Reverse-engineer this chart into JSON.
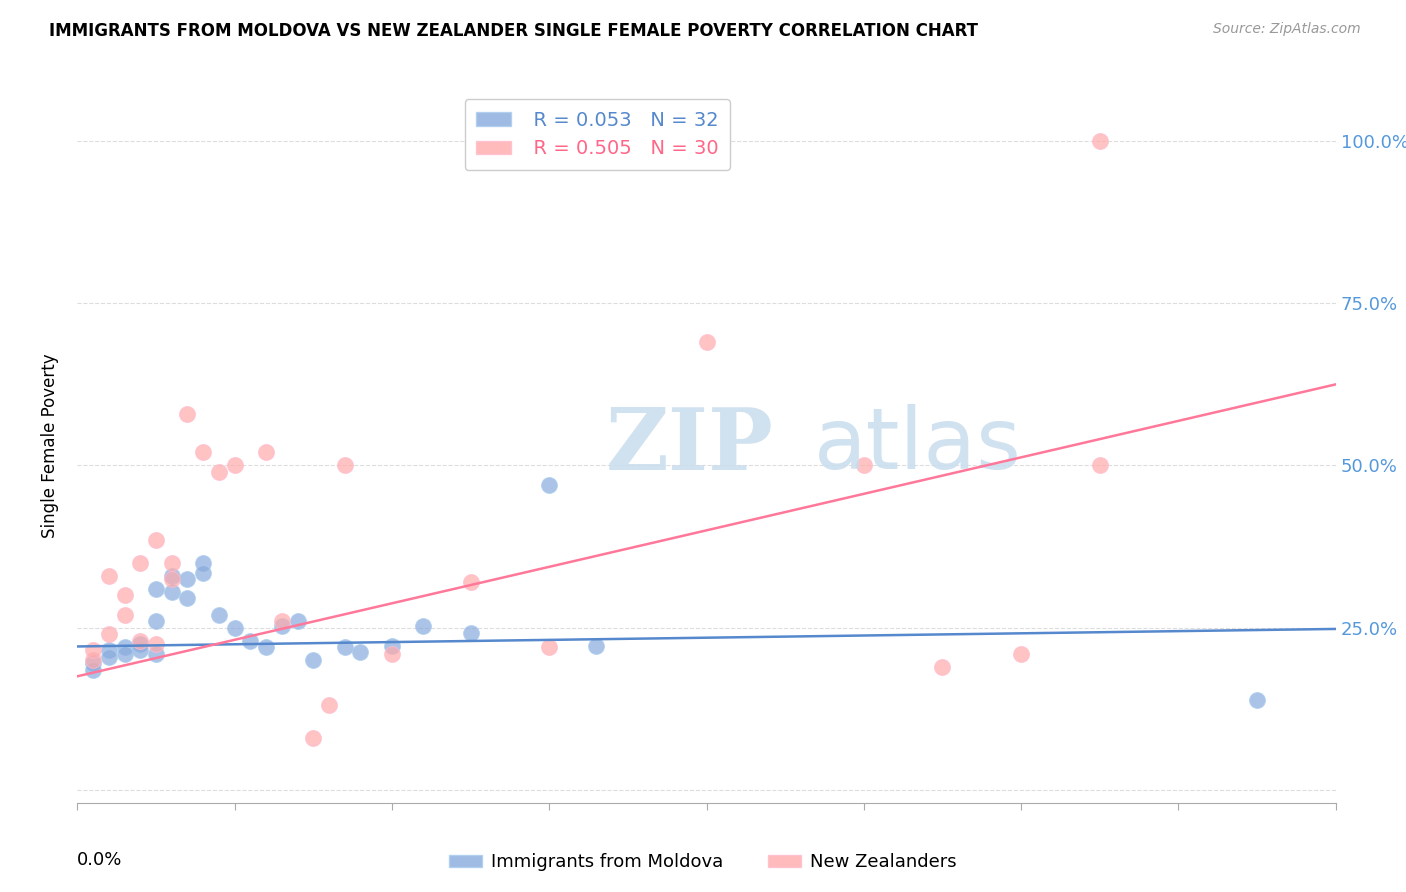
{
  "title": "IMMIGRANTS FROM MOLDOVA VS NEW ZEALANDER SINGLE FEMALE POVERTY CORRELATION CHART",
  "source": "Source: ZipAtlas.com",
  "ylabel": "Single Female Poverty",
  "yticks": [
    0.0,
    0.25,
    0.5,
    0.75,
    1.0
  ],
  "ytick_labels": [
    "",
    "25.0%",
    "50.0%",
    "75.0%",
    "100.0%"
  ],
  "xlim": [
    0.0,
    0.08
  ],
  "ylim": [
    -0.02,
    1.08
  ],
  "legend1_r": "R = 0.053",
  "legend1_n": "N = 32",
  "legend2_r": "R = 0.505",
  "legend2_n": "N = 30",
  "blue_color": "#88AADD",
  "pink_color": "#FFAAAA",
  "blue_line_color": "#5588CC",
  "pink_line_color": "#FF7799",
  "blue_scatter": [
    [
      0.001,
      0.195
    ],
    [
      0.001,
      0.185
    ],
    [
      0.002,
      0.215
    ],
    [
      0.002,
      0.205
    ],
    [
      0.003,
      0.22
    ],
    [
      0.003,
      0.21
    ],
    [
      0.004,
      0.225
    ],
    [
      0.004,
      0.215
    ],
    [
      0.005,
      0.21
    ],
    [
      0.005,
      0.26
    ],
    [
      0.005,
      0.31
    ],
    [
      0.006,
      0.305
    ],
    [
      0.006,
      0.33
    ],
    [
      0.007,
      0.325
    ],
    [
      0.007,
      0.295
    ],
    [
      0.008,
      0.35
    ],
    [
      0.008,
      0.335
    ],
    [
      0.009,
      0.27
    ],
    [
      0.01,
      0.25
    ],
    [
      0.011,
      0.23
    ],
    [
      0.012,
      0.22
    ],
    [
      0.013,
      0.252
    ],
    [
      0.014,
      0.26
    ],
    [
      0.015,
      0.2
    ],
    [
      0.017,
      0.22
    ],
    [
      0.018,
      0.212
    ],
    [
      0.02,
      0.222
    ],
    [
      0.022,
      0.252
    ],
    [
      0.025,
      0.242
    ],
    [
      0.03,
      0.47
    ],
    [
      0.033,
      0.222
    ],
    [
      0.075,
      0.138
    ]
  ],
  "pink_scatter": [
    [
      0.001,
      0.2
    ],
    [
      0.001,
      0.215
    ],
    [
      0.002,
      0.24
    ],
    [
      0.002,
      0.33
    ],
    [
      0.003,
      0.27
    ],
    [
      0.003,
      0.3
    ],
    [
      0.004,
      0.23
    ],
    [
      0.004,
      0.35
    ],
    [
      0.005,
      0.225
    ],
    [
      0.005,
      0.385
    ],
    [
      0.006,
      0.325
    ],
    [
      0.006,
      0.35
    ],
    [
      0.007,
      0.58
    ],
    [
      0.008,
      0.52
    ],
    [
      0.009,
      0.49
    ],
    [
      0.01,
      0.5
    ],
    [
      0.012,
      0.52
    ],
    [
      0.013,
      0.26
    ],
    [
      0.015,
      0.08
    ],
    [
      0.016,
      0.13
    ],
    [
      0.017,
      0.5
    ],
    [
      0.02,
      0.21
    ],
    [
      0.025,
      0.32
    ],
    [
      0.03,
      0.22
    ],
    [
      0.04,
      0.69
    ],
    [
      0.05,
      0.5
    ],
    [
      0.055,
      0.19
    ],
    [
      0.06,
      0.21
    ],
    [
      0.065,
      1.0
    ],
    [
      0.065,
      0.5
    ]
  ],
  "blue_line_x": [
    0.0,
    0.08
  ],
  "blue_line_y": [
    0.221,
    0.248
  ],
  "pink_line_x": [
    0.0,
    0.08
  ],
  "pink_line_y": [
    0.175,
    0.625
  ],
  "background_color": "#FFFFFF",
  "grid_color": "#DDDDDD",
  "bubble_size": 130
}
